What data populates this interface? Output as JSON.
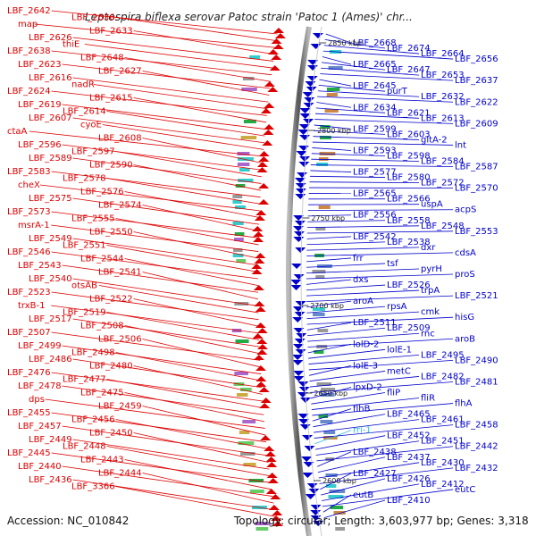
{
  "header": {
    "title": "Leptospira biflexa serovar Patoc strain 'Patoc 1 (Ames)' chr..."
  },
  "footer": {
    "accession": "Accession: NC_010842",
    "summary": "Topology: circular; Length: 3,603,977 bp; Genes: 3,318"
  },
  "colors": {
    "left_genes": "#dd0000",
    "right_genes": "#0000cc",
    "rna_gene": "#33bbdd",
    "backbone": "#888888"
  },
  "ruler_ticks": [
    "2850 kbp",
    "2800 kbp",
    "2750 kbp",
    "2700 kbp",
    "2650 kbp",
    "2600 kbp"
  ],
  "left_labels": [
    "LBF_2642",
    "LBF_2636",
    "map",
    "LBF_2633",
    "LBF_2626",
    "thiE",
    "LBF_2638",
    "LBF_2648",
    "LBF_2623",
    "LBF_2627",
    "LBF_2616",
    "nadR",
    "LBF_2624",
    "LBF_2615",
    "LBF_2619",
    "LBF_2614",
    "LBF_2607",
    "cyoE",
    "ctaA",
    "LBF_2608",
    "LBF_2596",
    "LBF_2597",
    "LBF_2589",
    "LBF_2590",
    "LBF_2583",
    "LBF_2578",
    "cheX",
    "LBF_2576",
    "LBF_2575",
    "LBF_2574",
    "LBF_2573",
    "LBF_2555",
    "msrA-1",
    "LBF_2550",
    "LBF_2549",
    "LBF_2551",
    "LBF_2546",
    "LBF_2544",
    "LBF_2543",
    "LBF_2541",
    "LBF_2540",
    "otsAB",
    "LBF_2523",
    "LBF_2522",
    "trxB-1",
    "LBF_2519",
    "LBF_2517",
    "LBF_2508",
    "LBF_2507",
    "LBF_2506",
    "LBF_2499",
    "LBF_2498",
    "LBF_2486",
    "LBF_2480",
    "LBF_2476",
    "LBF_2477",
    "LBF_2478",
    "LBF_2475",
    "dps",
    "LBF_2459",
    "LBF_2455",
    "LBF_2456",
    "LBF_2457",
    "LBF_2450",
    "LBF_2449",
    "LBF_2448",
    "LBF_2445",
    "LBF_2443",
    "LBF_2440",
    "LBF_2444",
    "LBF_2436",
    "LBF_3366"
  ],
  "right_labels": [
    "LBF_2668",
    "LBF_2674",
    "LBF_2664",
    "LBF_2656",
    "LBF_2665",
    "LBF_2647",
    "LBF_2653",
    "LBF_2637",
    "LBF_2645",
    "purT",
    "LBF_2632",
    "LBF_2622",
    "LBF_2634",
    "LBF_2621",
    "LBF_2613",
    "LBF_2609",
    "LBF_2599",
    "LBF_2603",
    "gltA-2",
    "lnt",
    "LBF_2593",
    "LBF_2598",
    "LBF_2584",
    "LBF_2587",
    "LBF_2577",
    "LBF_2580",
    "LBF_2572",
    "LBF_2570",
    "LBF_2565",
    "LBF_2566",
    "uspA",
    "acpS",
    "LBF_2556",
    "LBF_2558",
    "LBF_2548",
    "LBF_2553",
    "LBF_2542",
    "LBF_2538",
    "dxr",
    "cdsA",
    "frr",
    "tsf",
    "pyrH",
    "proS",
    "dxs",
    "LBF_2526",
    "trpA",
    "LBF_2521",
    "aroA",
    "rpsA",
    "cmk",
    "hisG",
    "LBF_2511",
    "LBF_2509",
    "rnc",
    "aroB",
    "lolD-2",
    "lolE-1",
    "LBF_2495",
    "LBF_2490",
    "lolE-3",
    "metC",
    "LBF_2482",
    "LBF_2481",
    "lpxD-2",
    "fliP",
    "fliR",
    "flhA",
    "flhB",
    "LBF_2465",
    "LBF_2461",
    "LBF_2458",
    "rrl-1",
    "LBF_2452",
    "LBF_2451",
    "LBF_2442",
    "LBF_2438",
    "LBF_2437",
    "LBF_2430",
    "LBF_2432",
    "LBF_2427",
    "LBF_2426",
    "LBF_2412",
    "eutC",
    "eutB",
    "LBF_2410"
  ]
}
